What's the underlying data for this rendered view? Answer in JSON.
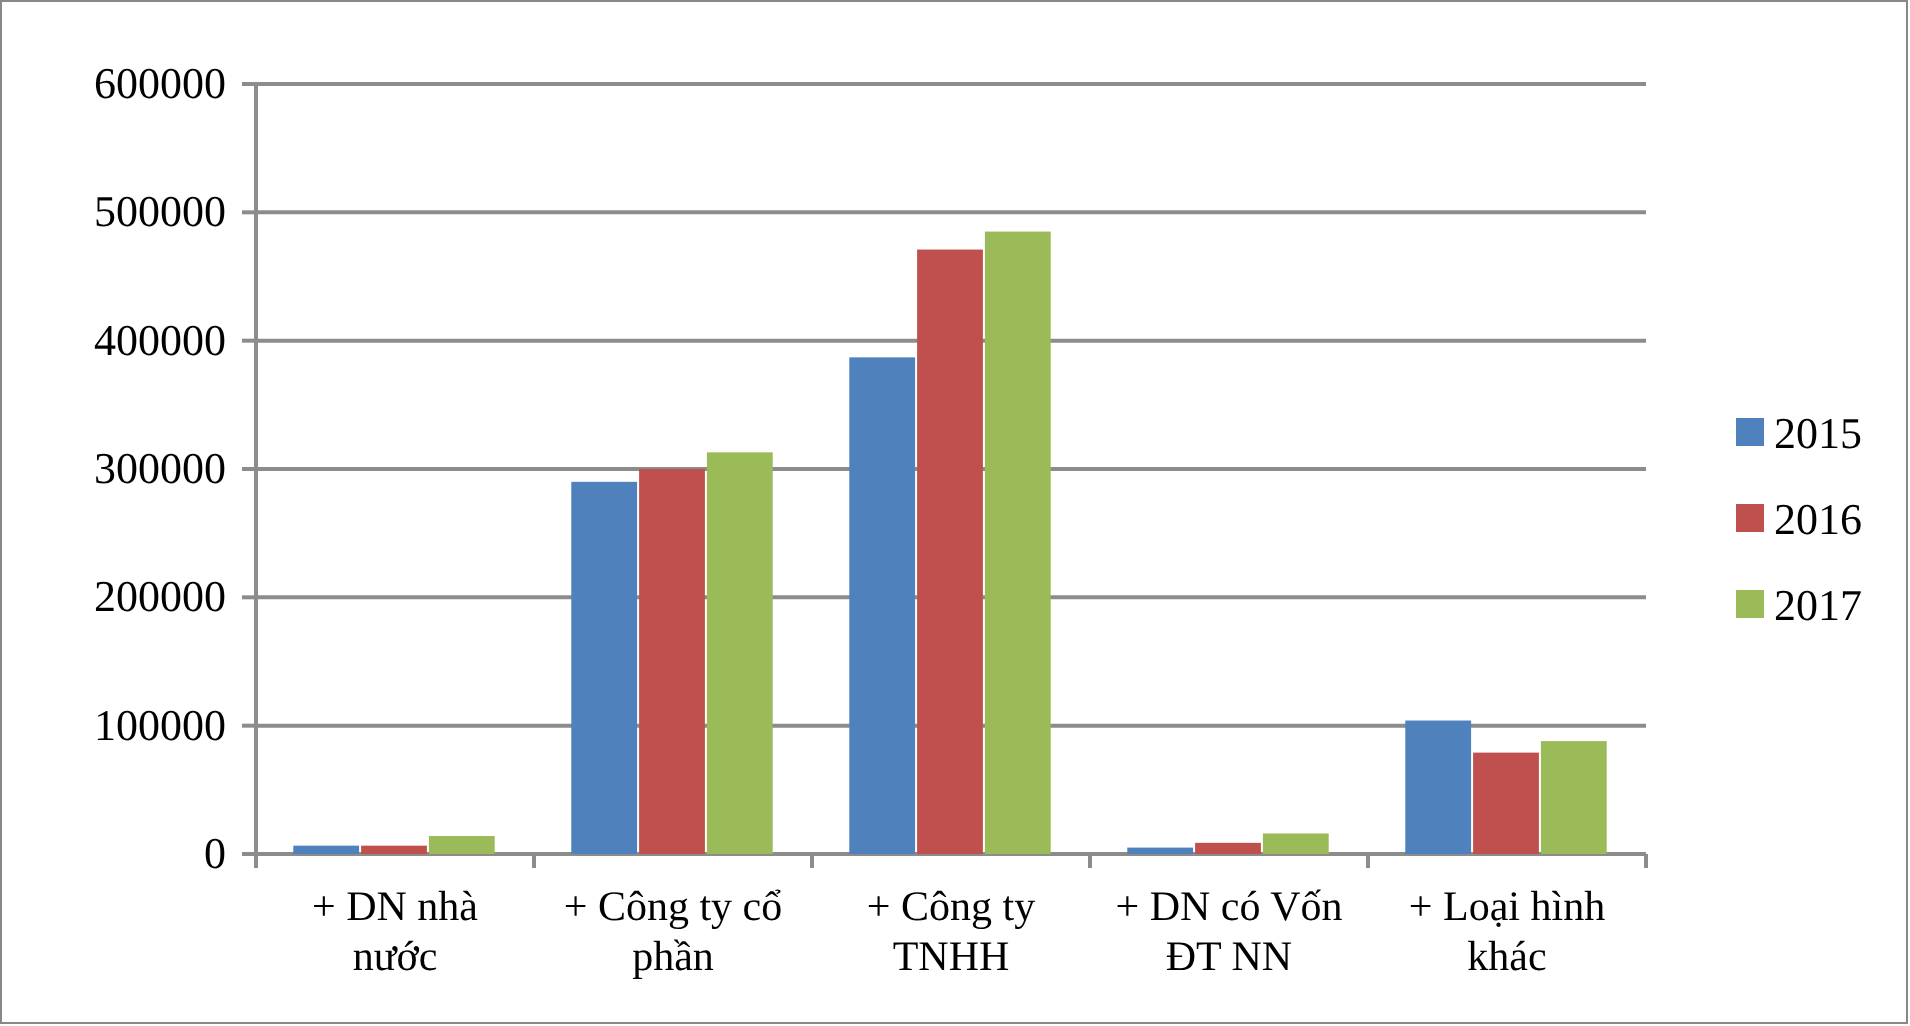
{
  "chart_data": {
    "type": "bar",
    "categories": [
      "+ DN nhà nước",
      "+ Công ty cổ phần",
      "+ Công ty TNHH",
      "+ DN có Vốn ĐT NN",
      "+ Loại hình khác"
    ],
    "series": [
      {
        "name": "2015",
        "color": "#4f81bd",
        "values": [
          6500,
          290000,
          387000,
          5000,
          104000
        ]
      },
      {
        "name": "2016",
        "color": "#c0504d",
        "values": [
          6500,
          300000,
          471000,
          8700,
          79000
        ]
      },
      {
        "name": "2017",
        "color": "#9bbb59",
        "values": [
          14000,
          313000,
          485000,
          16000,
          88000
        ]
      }
    ],
    "ylim": [
      0,
      600000
    ],
    "yticks": [
      0,
      100000,
      200000,
      300000,
      400000,
      500000,
      600000
    ],
    "grid": "y",
    "legend": "right"
  }
}
